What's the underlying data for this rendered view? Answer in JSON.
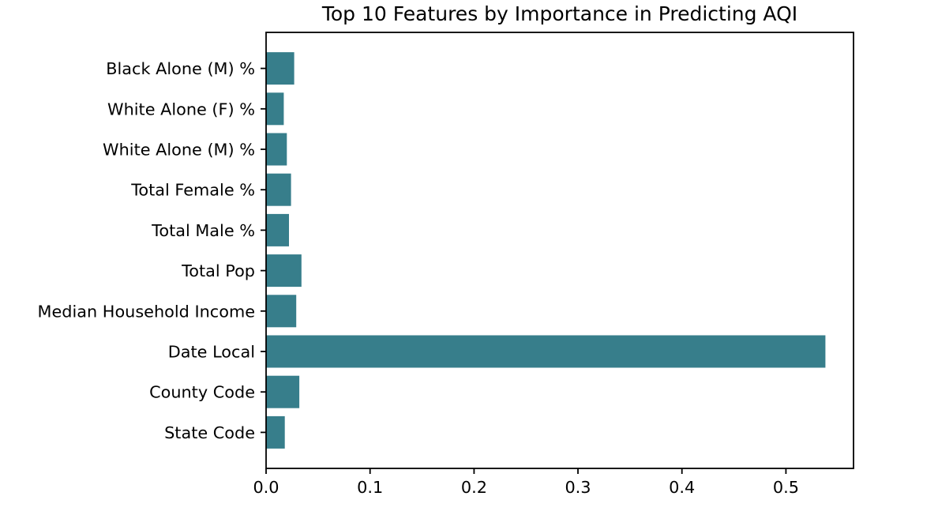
{
  "chart_data": {
    "type": "bar",
    "orientation": "horizontal",
    "title": "Top 10 Features by Importance in Predicting AQI",
    "categories": [
      "Black Alone (M) %",
      "White Alone (F) %",
      "White Alone (M) %",
      "Total Female %",
      "Total Male %",
      "Total Pop",
      "Median Household Income",
      "Date Local",
      "County Code",
      "State Code"
    ],
    "categories_order_note": "listed top-to-bottom as displayed",
    "values": [
      0.027,
      0.017,
      0.02,
      0.024,
      0.022,
      0.034,
      0.029,
      0.538,
      0.032,
      0.018
    ],
    "xlabel": "",
    "ylabel": "",
    "xlim": [
      0,
      0.565
    ],
    "xticks": [
      0.0,
      0.1,
      0.2,
      0.3,
      0.4,
      0.5
    ],
    "xtick_labels": [
      "0.0",
      "0.1",
      "0.2",
      "0.3",
      "0.4",
      "0.5"
    ],
    "grid": false,
    "legend": null,
    "bar_color": "#377e8b",
    "text_color": "#000000",
    "spine_color": "#000000",
    "background_color": "#ffffff"
  }
}
